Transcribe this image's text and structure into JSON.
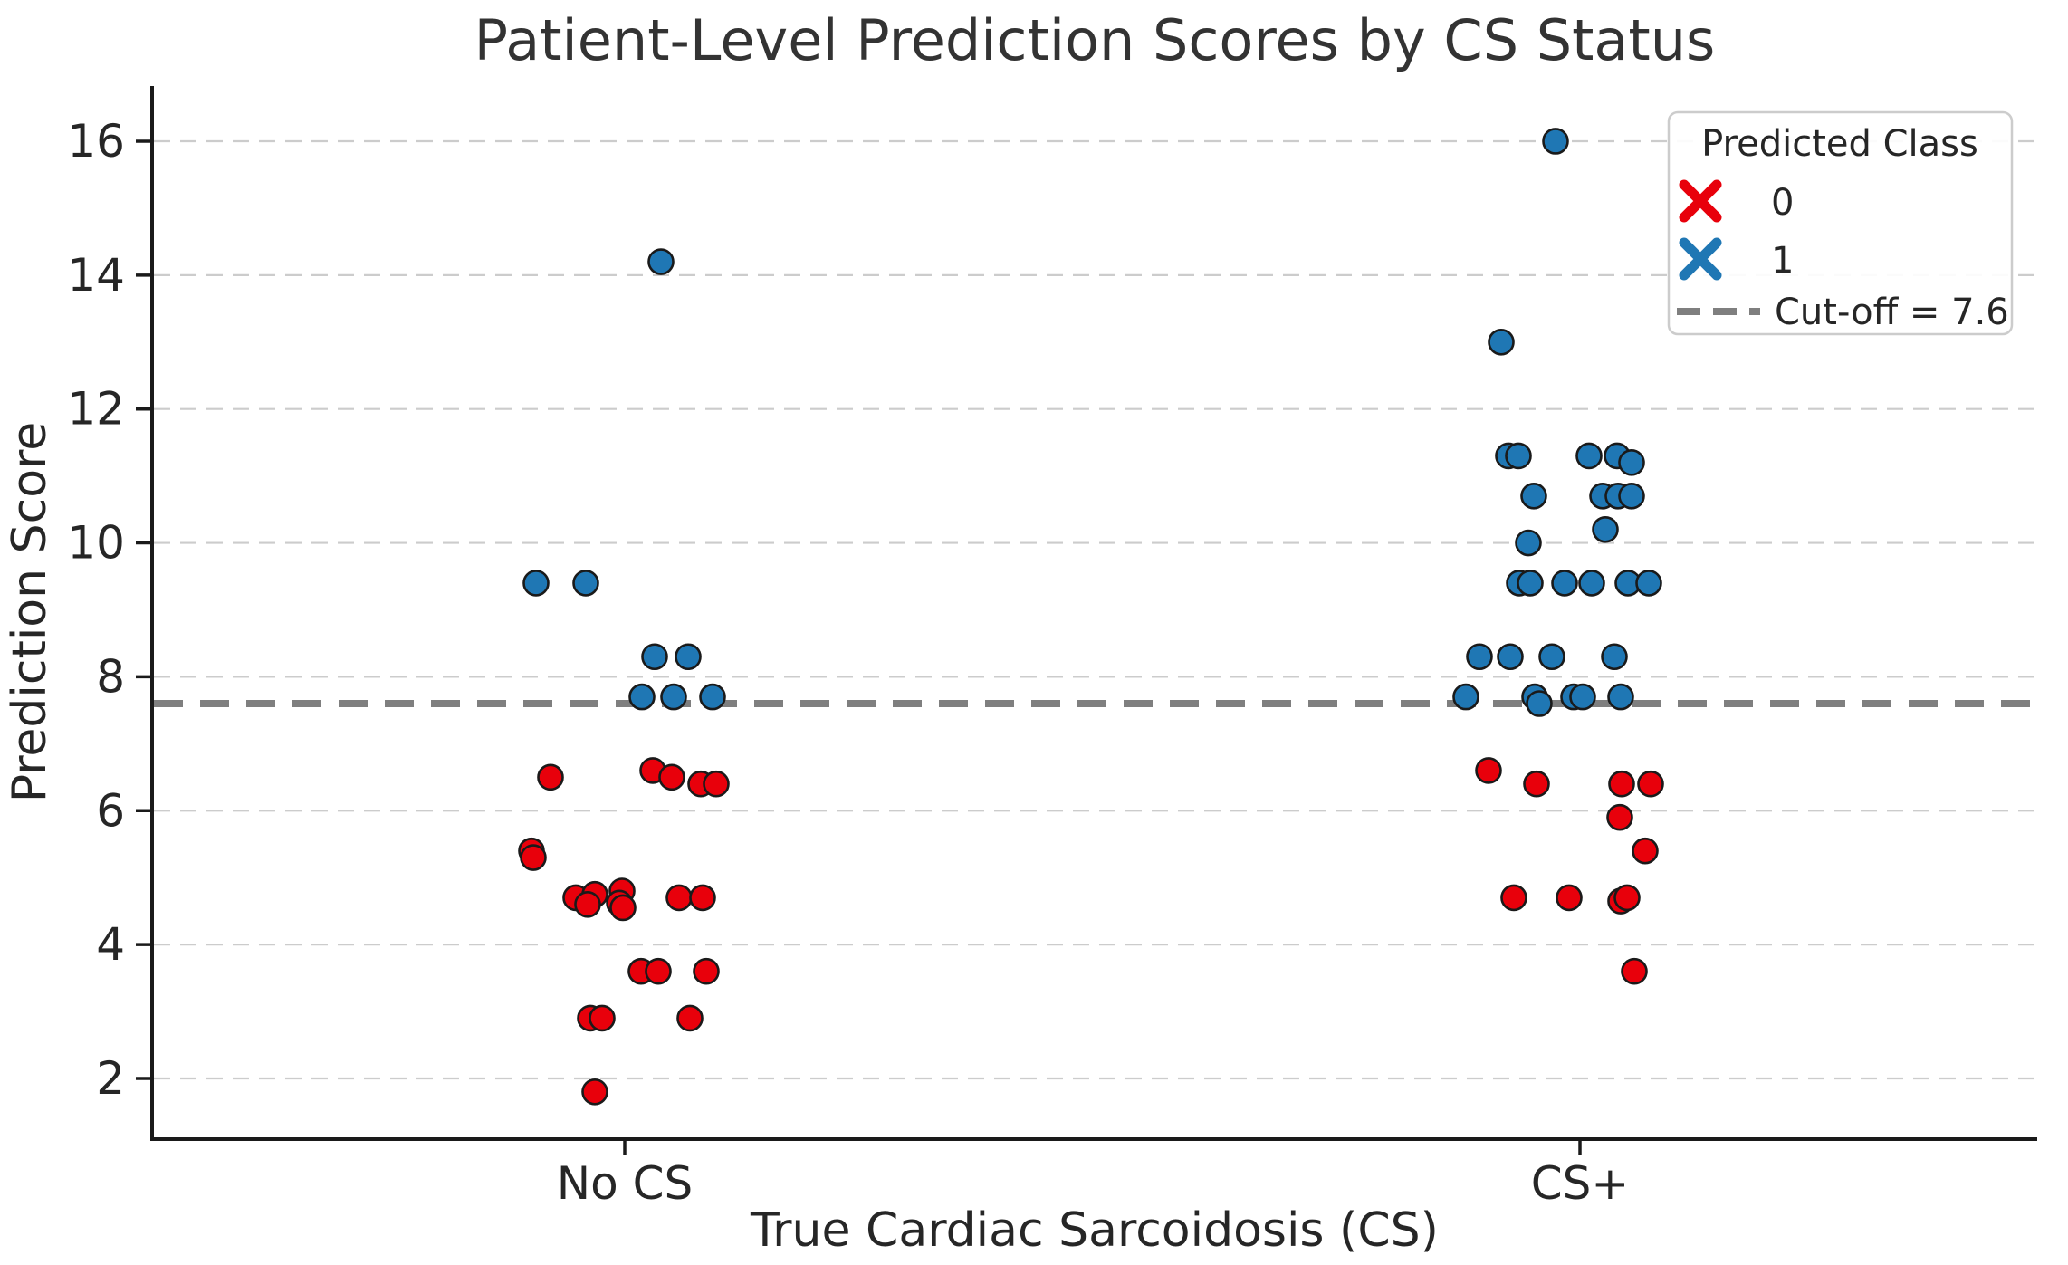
{
  "figure": {
    "title": "Patient-Level Prediction Scores by CS Status",
    "x_axis_label": "True Cardiac Sarcoidosis (CS)",
    "y_axis_label": "Prediction Score"
  },
  "legend": {
    "title": "Predicted Class",
    "entries": [
      {
        "label": "0",
        "marker": "x-marker",
        "color": "#e8000b"
      },
      {
        "label": "1",
        "marker": "x-marker",
        "color": "#1f77b4"
      },
      {
        "label": "Cut-off = 7.6",
        "marker": "dashed-line",
        "color": "#7f7f7f"
      }
    ]
  },
  "chart_data": {
    "type": "scatter",
    "subtype": "strip-plot-jittered",
    "title": "Patient-Level Prediction Scores by CS Status",
    "xlabel": "True Cardiac Sarcoidosis (CS)",
    "ylabel": "Prediction Score",
    "categories": [
      "No CS",
      "CS+"
    ],
    "yticks": [
      2,
      4,
      6,
      8,
      10,
      12,
      14,
      16
    ],
    "ylim": [
      1.1,
      16.9
    ],
    "grid": "horizontal dashed",
    "legend_position": "upper right",
    "cutoff": {
      "value": 7.6,
      "label": "Cut-off = 7.6",
      "color": "#7f7f7f",
      "style": "dashed"
    },
    "colors": {
      "class0": "#e8000b",
      "class1": "#1f77b4",
      "marker_edge": "#1a1a1a",
      "grid": "#cccccc",
      "spine": "#1a1a1a"
    },
    "series": [
      {
        "name": "0",
        "description": "Predicted class 0 (below cut-off)",
        "color": "#e8000b",
        "points": [
          {
            "cat": 0,
            "score": 6.5,
            "jitter": -82
          },
          {
            "cat": 0,
            "score": 6.6,
            "jitter": 31
          },
          {
            "cat": 0,
            "score": 6.5,
            "jitter": 52
          },
          {
            "cat": 0,
            "score": 6.4,
            "jitter": 84
          },
          {
            "cat": 0,
            "score": 6.4,
            "jitter": 101
          },
          {
            "cat": 0,
            "score": 5.4,
            "jitter": -103
          },
          {
            "cat": 0,
            "score": 5.3,
            "jitter": -101
          },
          {
            "cat": 0,
            "score": 4.7,
            "jitter": -54
          },
          {
            "cat": 0,
            "score": 4.75,
            "jitter": -33
          },
          {
            "cat": 0,
            "score": 4.6,
            "jitter": -41
          },
          {
            "cat": 0,
            "score": 4.8,
            "jitter": -3
          },
          {
            "cat": 0,
            "score": 4.62,
            "jitter": -6
          },
          {
            "cat": 0,
            "score": 4.55,
            "jitter": -2
          },
          {
            "cat": 0,
            "score": 4.7,
            "jitter": 60
          },
          {
            "cat": 0,
            "score": 4.7,
            "jitter": 86
          },
          {
            "cat": 0,
            "score": 3.6,
            "jitter": 18
          },
          {
            "cat": 0,
            "score": 3.6,
            "jitter": 37
          },
          {
            "cat": 0,
            "score": 3.6,
            "jitter": 90
          },
          {
            "cat": 0,
            "score": 2.9,
            "jitter": -38
          },
          {
            "cat": 0,
            "score": 2.9,
            "jitter": -25
          },
          {
            "cat": 0,
            "score": 2.9,
            "jitter": 72
          },
          {
            "cat": 0,
            "score": 1.8,
            "jitter": -33
          },
          {
            "cat": 1,
            "score": 6.6,
            "jitter": -101
          },
          {
            "cat": 1,
            "score": 6.4,
            "jitter": -48
          },
          {
            "cat": 1,
            "score": 6.4,
            "jitter": 46
          },
          {
            "cat": 1,
            "score": 6.4,
            "jitter": 78
          },
          {
            "cat": 1,
            "score": 5.9,
            "jitter": 44
          },
          {
            "cat": 1,
            "score": 5.4,
            "jitter": 72
          },
          {
            "cat": 1,
            "score": 4.7,
            "jitter": -73
          },
          {
            "cat": 1,
            "score": 4.7,
            "jitter": -12
          },
          {
            "cat": 1,
            "score": 4.65,
            "jitter": 45
          },
          {
            "cat": 1,
            "score": 4.7,
            "jitter": 52
          },
          {
            "cat": 1,
            "score": 3.6,
            "jitter": 60
          }
        ]
      },
      {
        "name": "1",
        "description": "Predicted class 1 (above cut-off)",
        "color": "#1f77b4",
        "points": [
          {
            "cat": 0,
            "score": 14.2,
            "jitter": 40
          },
          {
            "cat": 0,
            "score": 9.4,
            "jitter": -98
          },
          {
            "cat": 0,
            "score": 9.4,
            "jitter": -43
          },
          {
            "cat": 0,
            "score": 8.3,
            "jitter": 33
          },
          {
            "cat": 0,
            "score": 8.3,
            "jitter": 70
          },
          {
            "cat": 0,
            "score": 7.7,
            "jitter": 19
          },
          {
            "cat": 0,
            "score": 7.7,
            "jitter": 54
          },
          {
            "cat": 0,
            "score": 7.7,
            "jitter": 97
          },
          {
            "cat": 1,
            "score": 16.0,
            "jitter": -27
          },
          {
            "cat": 1,
            "score": 13.0,
            "jitter": -87
          },
          {
            "cat": 1,
            "score": 11.3,
            "jitter": -79
          },
          {
            "cat": 1,
            "score": 11.3,
            "jitter": -68
          },
          {
            "cat": 1,
            "score": 11.3,
            "jitter": 10
          },
          {
            "cat": 1,
            "score": 11.3,
            "jitter": 41
          },
          {
            "cat": 1,
            "score": 11.2,
            "jitter": 57
          },
          {
            "cat": 1,
            "score": 10.7,
            "jitter": -51
          },
          {
            "cat": 1,
            "score": 10.7,
            "jitter": 25
          },
          {
            "cat": 1,
            "score": 10.7,
            "jitter": 42
          },
          {
            "cat": 1,
            "score": 10.7,
            "jitter": 57
          },
          {
            "cat": 1,
            "score": 10.2,
            "jitter": 28
          },
          {
            "cat": 1,
            "score": 10.0,
            "jitter": -57
          },
          {
            "cat": 1,
            "score": 9.4,
            "jitter": -67
          },
          {
            "cat": 1,
            "score": 9.4,
            "jitter": -55
          },
          {
            "cat": 1,
            "score": 9.4,
            "jitter": -17
          },
          {
            "cat": 1,
            "score": 9.4,
            "jitter": 13
          },
          {
            "cat": 1,
            "score": 9.4,
            "jitter": 53
          },
          {
            "cat": 1,
            "score": 9.4,
            "jitter": 76
          },
          {
            "cat": 1,
            "score": 8.3,
            "jitter": -111
          },
          {
            "cat": 1,
            "score": 8.3,
            "jitter": -77
          },
          {
            "cat": 1,
            "score": 8.3,
            "jitter": -31
          },
          {
            "cat": 1,
            "score": 8.3,
            "jitter": 38
          },
          {
            "cat": 1,
            "score": 7.7,
            "jitter": -126
          },
          {
            "cat": 1,
            "score": 7.7,
            "jitter": -50
          },
          {
            "cat": 1,
            "score": 7.6,
            "jitter": -45
          },
          {
            "cat": 1,
            "score": 7.7,
            "jitter": -7
          },
          {
            "cat": 1,
            "score": 7.7,
            "jitter": 3
          },
          {
            "cat": 1,
            "score": 7.7,
            "jitter": 45
          }
        ]
      }
    ]
  }
}
